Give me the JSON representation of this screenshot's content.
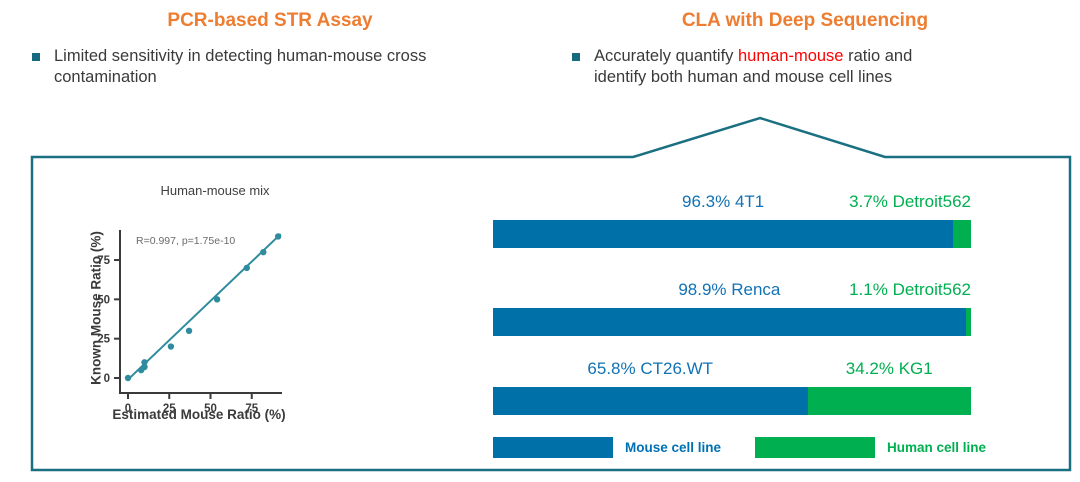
{
  "panels": {
    "left": {
      "title": "PCR-based STR Assay",
      "bullet": "Limited sensitivity in detecting human-mouse cross contamination"
    },
    "right": {
      "title": "CLA with Deep Sequencing",
      "bullet_prefix": "Accurately quantify ",
      "bullet_highlight": "human-mouse",
      "bullet_suffix": " ratio and identify both human and mouse cell lines"
    }
  },
  "colors": {
    "accent_orange": "#ED7D31",
    "highlight_red": "#FF0000",
    "teal_border": "#1A7080",
    "scatter_teal": "#2E8C9E",
    "mouse_blue_bar": "#0070A8",
    "mouse_blue_text": "#1172B4",
    "human_green_bar": "#00B050",
    "human_green_text": "#00AF50"
  },
  "chart_data": [
    {
      "type": "scatter",
      "title": "Human-mouse mix",
      "annotation": "R=0.997, p=1.75e-10",
      "xlabel": "Estimated Mouse Ratio (%)",
      "ylabel": "Known Mouse Ratio (%)",
      "xticks": [
        0,
        25,
        50,
        75
      ],
      "yticks": [
        0,
        25,
        50,
        75
      ],
      "xlim": [
        0,
        95
      ],
      "ylim": [
        0,
        95
      ],
      "grid": false,
      "points": [
        [
          0,
          0
        ],
        [
          8,
          5
        ],
        [
          10,
          7
        ],
        [
          10,
          10
        ],
        [
          26,
          20
        ],
        [
          37,
          30
        ],
        [
          54,
          50
        ],
        [
          72,
          70
        ],
        [
          82,
          80
        ],
        [
          91,
          90
        ]
      ],
      "trendline": {
        "x1": 0,
        "y1": -1,
        "x2": 92.5,
        "y2": 91.5
      }
    },
    {
      "type": "bar",
      "subtype": "horizontal-stacked-100pct",
      "rows": [
        {
          "mouse_pct": 96.3,
          "mouse_label": "96.3% 4T1",
          "human_pct": 3.7,
          "human_label": "3.7% Detroit562"
        },
        {
          "mouse_pct": 98.9,
          "mouse_label": "98.9% Renca",
          "human_pct": 1.1,
          "human_label": "1.1% Detroit562"
        },
        {
          "mouse_pct": 65.8,
          "mouse_label": "65.8% CT26.WT",
          "human_pct": 34.2,
          "human_label": "34.2% KG1"
        }
      ],
      "legend": [
        {
          "label": "Mouse cell line",
          "color": "#0070A8"
        },
        {
          "label": "Human cell line",
          "color": "#00B050"
        }
      ]
    }
  ]
}
